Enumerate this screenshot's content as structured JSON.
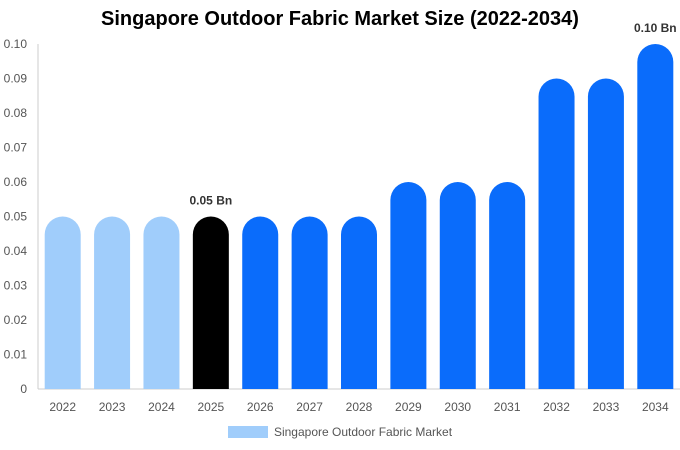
{
  "chart_data": {
    "type": "bar",
    "title": "Singapore Outdoor Fabric Market Size (2022-2034)",
    "categories": [
      "2022",
      "2023",
      "2024",
      "2025",
      "2026",
      "2027",
      "2028",
      "2029",
      "2030",
      "2031",
      "2032",
      "2033",
      "2034"
    ],
    "series": [
      {
        "name": "Singapore Outdoor Fabric Market",
        "values": [
          0.05,
          0.05,
          0.05,
          0.05,
          0.05,
          0.05,
          0.05,
          0.06,
          0.06,
          0.06,
          0.09,
          0.09,
          0.1
        ]
      }
    ],
    "bar_colors": [
      "#a0cdfb",
      "#a0cdfb",
      "#a0cdfb",
      "#000000",
      "#0a6cfb",
      "#0a6cfb",
      "#0a6cfb",
      "#0a6cfb",
      "#0a6cfb",
      "#0a6cfb",
      "#0a6cfb",
      "#0a6cfb",
      "#0a6cfb"
    ],
    "legend_color": "#a0cdfb",
    "data_labels": [
      {
        "category": "2025",
        "text": "0.05 Bn"
      },
      {
        "category": "2034",
        "text": "0.10 Bn"
      }
    ],
    "yticks": [
      "0",
      "0.01",
      "0.02",
      "0.03",
      "0.04",
      "0.05",
      "0.06",
      "0.07",
      "0.08",
      "0.09",
      "0.10"
    ],
    "ylim": [
      0,
      0.1
    ],
    "xlabel": "",
    "ylabel": "",
    "grid": false,
    "legend_position": "bottom"
  }
}
